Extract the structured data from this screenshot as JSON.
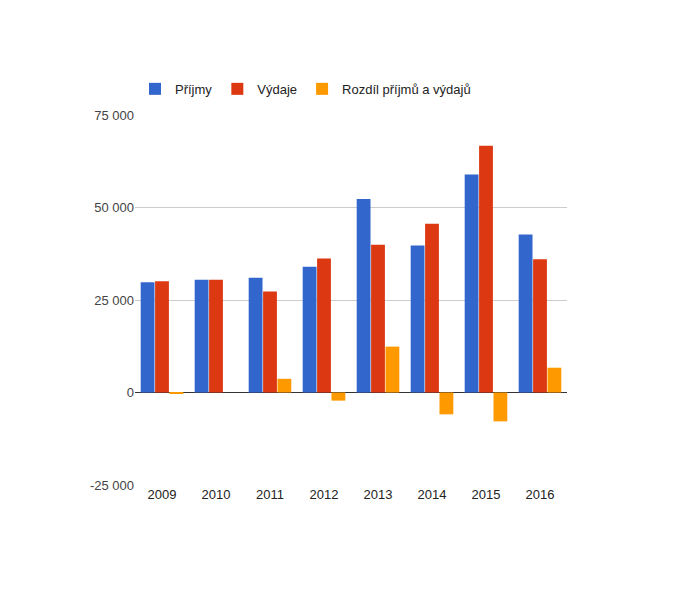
{
  "chart_data": {
    "type": "bar",
    "categories": [
      "2009",
      "2010",
      "2011",
      "2012",
      "2013",
      "2014",
      "2015",
      "2016"
    ],
    "series": [
      {
        "name": "Příjmy",
        "color": "#3366cc",
        "values": [
          29800,
          30500,
          31000,
          34000,
          52300,
          39700,
          58900,
          42700
        ]
      },
      {
        "name": "Výdaje",
        "color": "#dc3912",
        "values": [
          30100,
          30500,
          27300,
          36200,
          39900,
          45600,
          66700,
          36000
        ]
      },
      {
        "name": "Rozdíl příjmů a výdajů",
        "color": "#ff9900",
        "values": [
          -300,
          0,
          3700,
          -2200,
          12400,
          -5900,
          -7800,
          6700
        ]
      }
    ],
    "ylim": [
      -25000,
      75000
    ],
    "yticks": [
      {
        "value": -25000,
        "label": "-25 000"
      },
      0,
      {
        "value": 25000,
        "label": "25 000"
      },
      {
        "value": 50000,
        "label": "50 000"
      },
      {
        "value": 75000,
        "label": "75 000"
      }
    ],
    "grid": true,
    "legend": "top"
  }
}
